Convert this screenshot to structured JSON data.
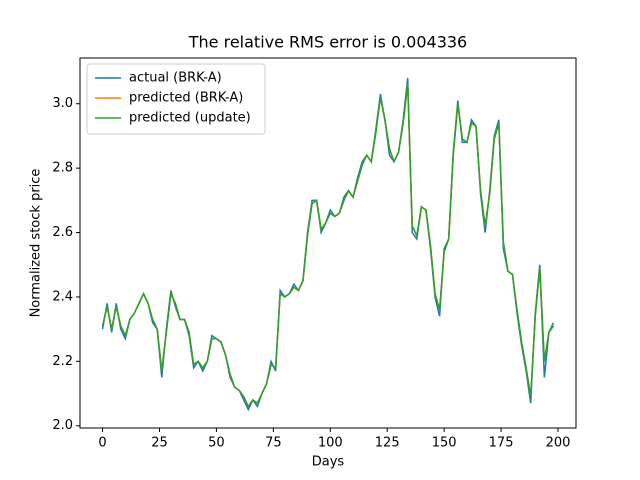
{
  "chart_data": {
    "type": "line",
    "title": "The relative RMS error is 0.004336",
    "x_label": "Days",
    "y_label": "Normalized stock price",
    "xlim": [
      -9.9,
      207.9
    ],
    "ylim": [
      1.993,
      3.142
    ],
    "xticks": [
      0,
      25,
      50,
      75,
      100,
      125,
      150,
      175,
      200
    ],
    "yticks": [
      {
        "value": 2.0,
        "label": "2.0"
      },
      2.2,
      2.4,
      2.6,
      2.8,
      {
        "value": 3.0,
        "label": "3.0"
      }
    ],
    "legend": "upper left",
    "x": [
      0,
      2,
      4,
      6,
      8,
      10,
      12,
      14,
      16,
      18,
      20,
      22,
      24,
      26,
      28,
      30,
      32,
      34,
      36,
      38,
      40,
      42,
      44,
      46,
      48,
      50,
      52,
      54,
      56,
      58,
      60,
      62,
      64,
      66,
      68,
      70,
      72,
      74,
      76,
      78,
      80,
      82,
      84,
      86,
      88,
      90,
      92,
      94,
      96,
      98,
      100,
      102,
      104,
      106,
      108,
      110,
      112,
      114,
      116,
      118,
      120,
      122,
      124,
      126,
      128,
      130,
      132,
      134,
      136,
      138,
      140,
      142,
      144,
      146,
      148,
      150,
      152,
      154,
      156,
      158,
      160,
      162,
      164,
      166,
      168,
      170,
      172,
      174,
      176,
      178,
      180,
      182,
      184,
      186,
      188,
      190,
      192,
      194,
      196,
      198
    ],
    "series": [
      {
        "name": "actual (BRK-A)",
        "color": "#1f77b4",
        "values": [
          2.3,
          2.38,
          2.29,
          2.38,
          2.3,
          2.27,
          2.33,
          2.35,
          2.38,
          2.41,
          2.38,
          2.32,
          2.3,
          2.15,
          2.3,
          2.42,
          2.37,
          2.33,
          2.33,
          2.28,
          2.18,
          2.2,
          2.17,
          2.2,
          2.28,
          2.27,
          2.26,
          2.22,
          2.15,
          2.12,
          2.11,
          2.08,
          2.05,
          2.08,
          2.06,
          2.1,
          2.13,
          2.2,
          2.17,
          2.42,
          2.4,
          2.41,
          2.44,
          2.42,
          2.45,
          2.6,
          2.7,
          2.7,
          2.6,
          2.63,
          2.67,
          2.65,
          2.66,
          2.71,
          2.73,
          2.71,
          2.77,
          2.82,
          2.84,
          2.82,
          2.92,
          3.03,
          2.95,
          2.84,
          2.82,
          2.85,
          2.95,
          3.08,
          2.6,
          2.58,
          2.68,
          2.67,
          2.55,
          2.4,
          2.34,
          2.55,
          2.58,
          2.85,
          3.01,
          2.88,
          2.88,
          2.95,
          2.93,
          2.72,
          2.6,
          2.73,
          2.9,
          2.95,
          2.55,
          2.48,
          2.47,
          2.35,
          2.25,
          2.17,
          2.07,
          2.35,
          2.5,
          2.15,
          2.29,
          2.31
        ]
      },
      {
        "name": "predicted (BRK-A)",
        "color": "#ff7f0e",
        "values": [
          2.31,
          2.37,
          2.3,
          2.37,
          2.31,
          2.28,
          2.33,
          2.35,
          2.38,
          2.41,
          2.38,
          2.33,
          2.3,
          2.17,
          2.29,
          2.41,
          2.38,
          2.33,
          2.33,
          2.29,
          2.19,
          2.2,
          2.18,
          2.2,
          2.27,
          2.27,
          2.26,
          2.22,
          2.16,
          2.12,
          2.11,
          2.09,
          2.06,
          2.08,
          2.07,
          2.1,
          2.13,
          2.19,
          2.18,
          2.41,
          2.4,
          2.41,
          2.43,
          2.42,
          2.45,
          2.59,
          2.69,
          2.7,
          2.61,
          2.63,
          2.66,
          2.65,
          2.66,
          2.7,
          2.73,
          2.71,
          2.76,
          2.81,
          2.84,
          2.82,
          2.91,
          3.02,
          2.95,
          2.86,
          2.82,
          2.85,
          2.94,
          3.06,
          2.62,
          2.59,
          2.68,
          2.67,
          2.56,
          2.41,
          2.36,
          2.54,
          2.58,
          2.84,
          3.0,
          2.89,
          2.88,
          2.94,
          2.93,
          2.73,
          2.62,
          2.72,
          2.89,
          2.94,
          2.57,
          2.48,
          2.47,
          2.36,
          2.26,
          2.18,
          2.09,
          2.34,
          2.49,
          2.2,
          2.29,
          2.32
        ]
      },
      {
        "name": "predicted (update)",
        "color": "#2ca02c",
        "values": [
          2.31,
          2.37,
          2.3,
          2.37,
          2.31,
          2.28,
          2.33,
          2.35,
          2.38,
          2.41,
          2.38,
          2.33,
          2.3,
          2.17,
          2.29,
          2.41,
          2.38,
          2.33,
          2.33,
          2.29,
          2.19,
          2.2,
          2.18,
          2.2,
          2.27,
          2.27,
          2.26,
          2.22,
          2.16,
          2.12,
          2.11,
          2.09,
          2.06,
          2.08,
          2.07,
          2.1,
          2.13,
          2.19,
          2.18,
          2.41,
          2.4,
          2.41,
          2.43,
          2.42,
          2.45,
          2.59,
          2.69,
          2.7,
          2.61,
          2.63,
          2.66,
          2.65,
          2.66,
          2.7,
          2.73,
          2.71,
          2.76,
          2.81,
          2.84,
          2.82,
          2.91,
          3.02,
          2.95,
          2.86,
          2.82,
          2.85,
          2.94,
          3.06,
          2.62,
          2.59,
          2.68,
          2.67,
          2.56,
          2.41,
          2.36,
          2.54,
          2.58,
          2.84,
          3.0,
          2.89,
          2.88,
          2.94,
          2.93,
          2.73,
          2.62,
          2.72,
          2.89,
          2.94,
          2.57,
          2.48,
          2.47,
          2.36,
          2.26,
          2.18,
          2.09,
          2.34,
          2.49,
          2.2,
          2.29,
          2.32
        ]
      }
    ]
  }
}
